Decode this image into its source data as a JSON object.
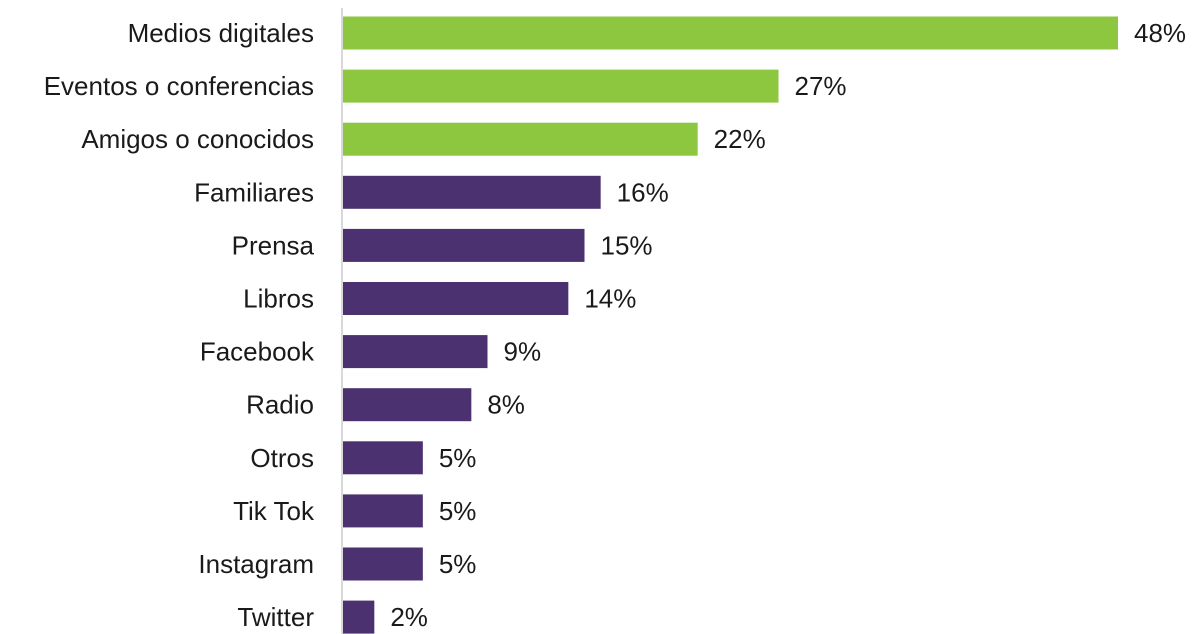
{
  "chart_data": {
    "type": "bar",
    "orientation": "horizontal",
    "categories": [
      "Medios digitales",
      "Eventos o conferencias",
      "Amigos o conocidos",
      "Familiares",
      "Prensa",
      "Libros",
      "Facebook",
      "Radio",
      "Otros",
      "Tik Tok",
      "Instagram",
      "Twitter"
    ],
    "values": [
      48,
      27,
      22,
      16,
      15,
      14,
      9,
      8,
      5,
      5,
      5,
      2
    ],
    "value_labels": [
      "48%",
      "27%",
      "22%",
      "16%",
      "15%",
      "14%",
      "9%",
      "8%",
      "5%",
      "5%",
      "5%",
      "2%"
    ],
    "bar_colors": [
      "#8dc63f",
      "#8dc63f",
      "#8dc63f",
      "#4b3170",
      "#4b3170",
      "#4b3170",
      "#4b3170",
      "#4b3170",
      "#4b3170",
      "#4b3170",
      "#4b3170",
      "#4b3170"
    ],
    "axis_color": "#d9d9d9",
    "xlim": [
      0,
      48
    ],
    "title": "",
    "xlabel": "",
    "ylabel": "",
    "grid": false,
    "legend": "none"
  }
}
